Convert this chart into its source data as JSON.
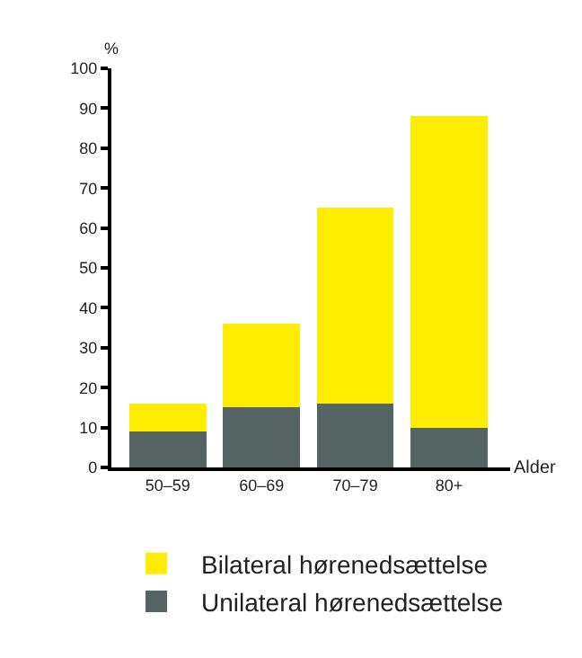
{
  "chart_data": {
    "type": "bar",
    "stacked": true,
    "xlabel": "Alder",
    "ylabel": "%",
    "categories": [
      "50–59",
      "60–69",
      "70–79",
      "80+"
    ],
    "series": [
      {
        "name": "Unilateral hørenedsættelse",
        "color": "#566564",
        "values": [
          9,
          15,
          16,
          10
        ]
      },
      {
        "name": "Bilateral hørenedsættelse",
        "color": "#ffed00",
        "values": [
          7,
          21,
          49,
          78
        ]
      }
    ],
    "ylim": [
      0,
      100
    ],
    "yticks": [
      0,
      10,
      20,
      30,
      40,
      50,
      60,
      70,
      80,
      90,
      100
    ],
    "legend": "bottom"
  }
}
